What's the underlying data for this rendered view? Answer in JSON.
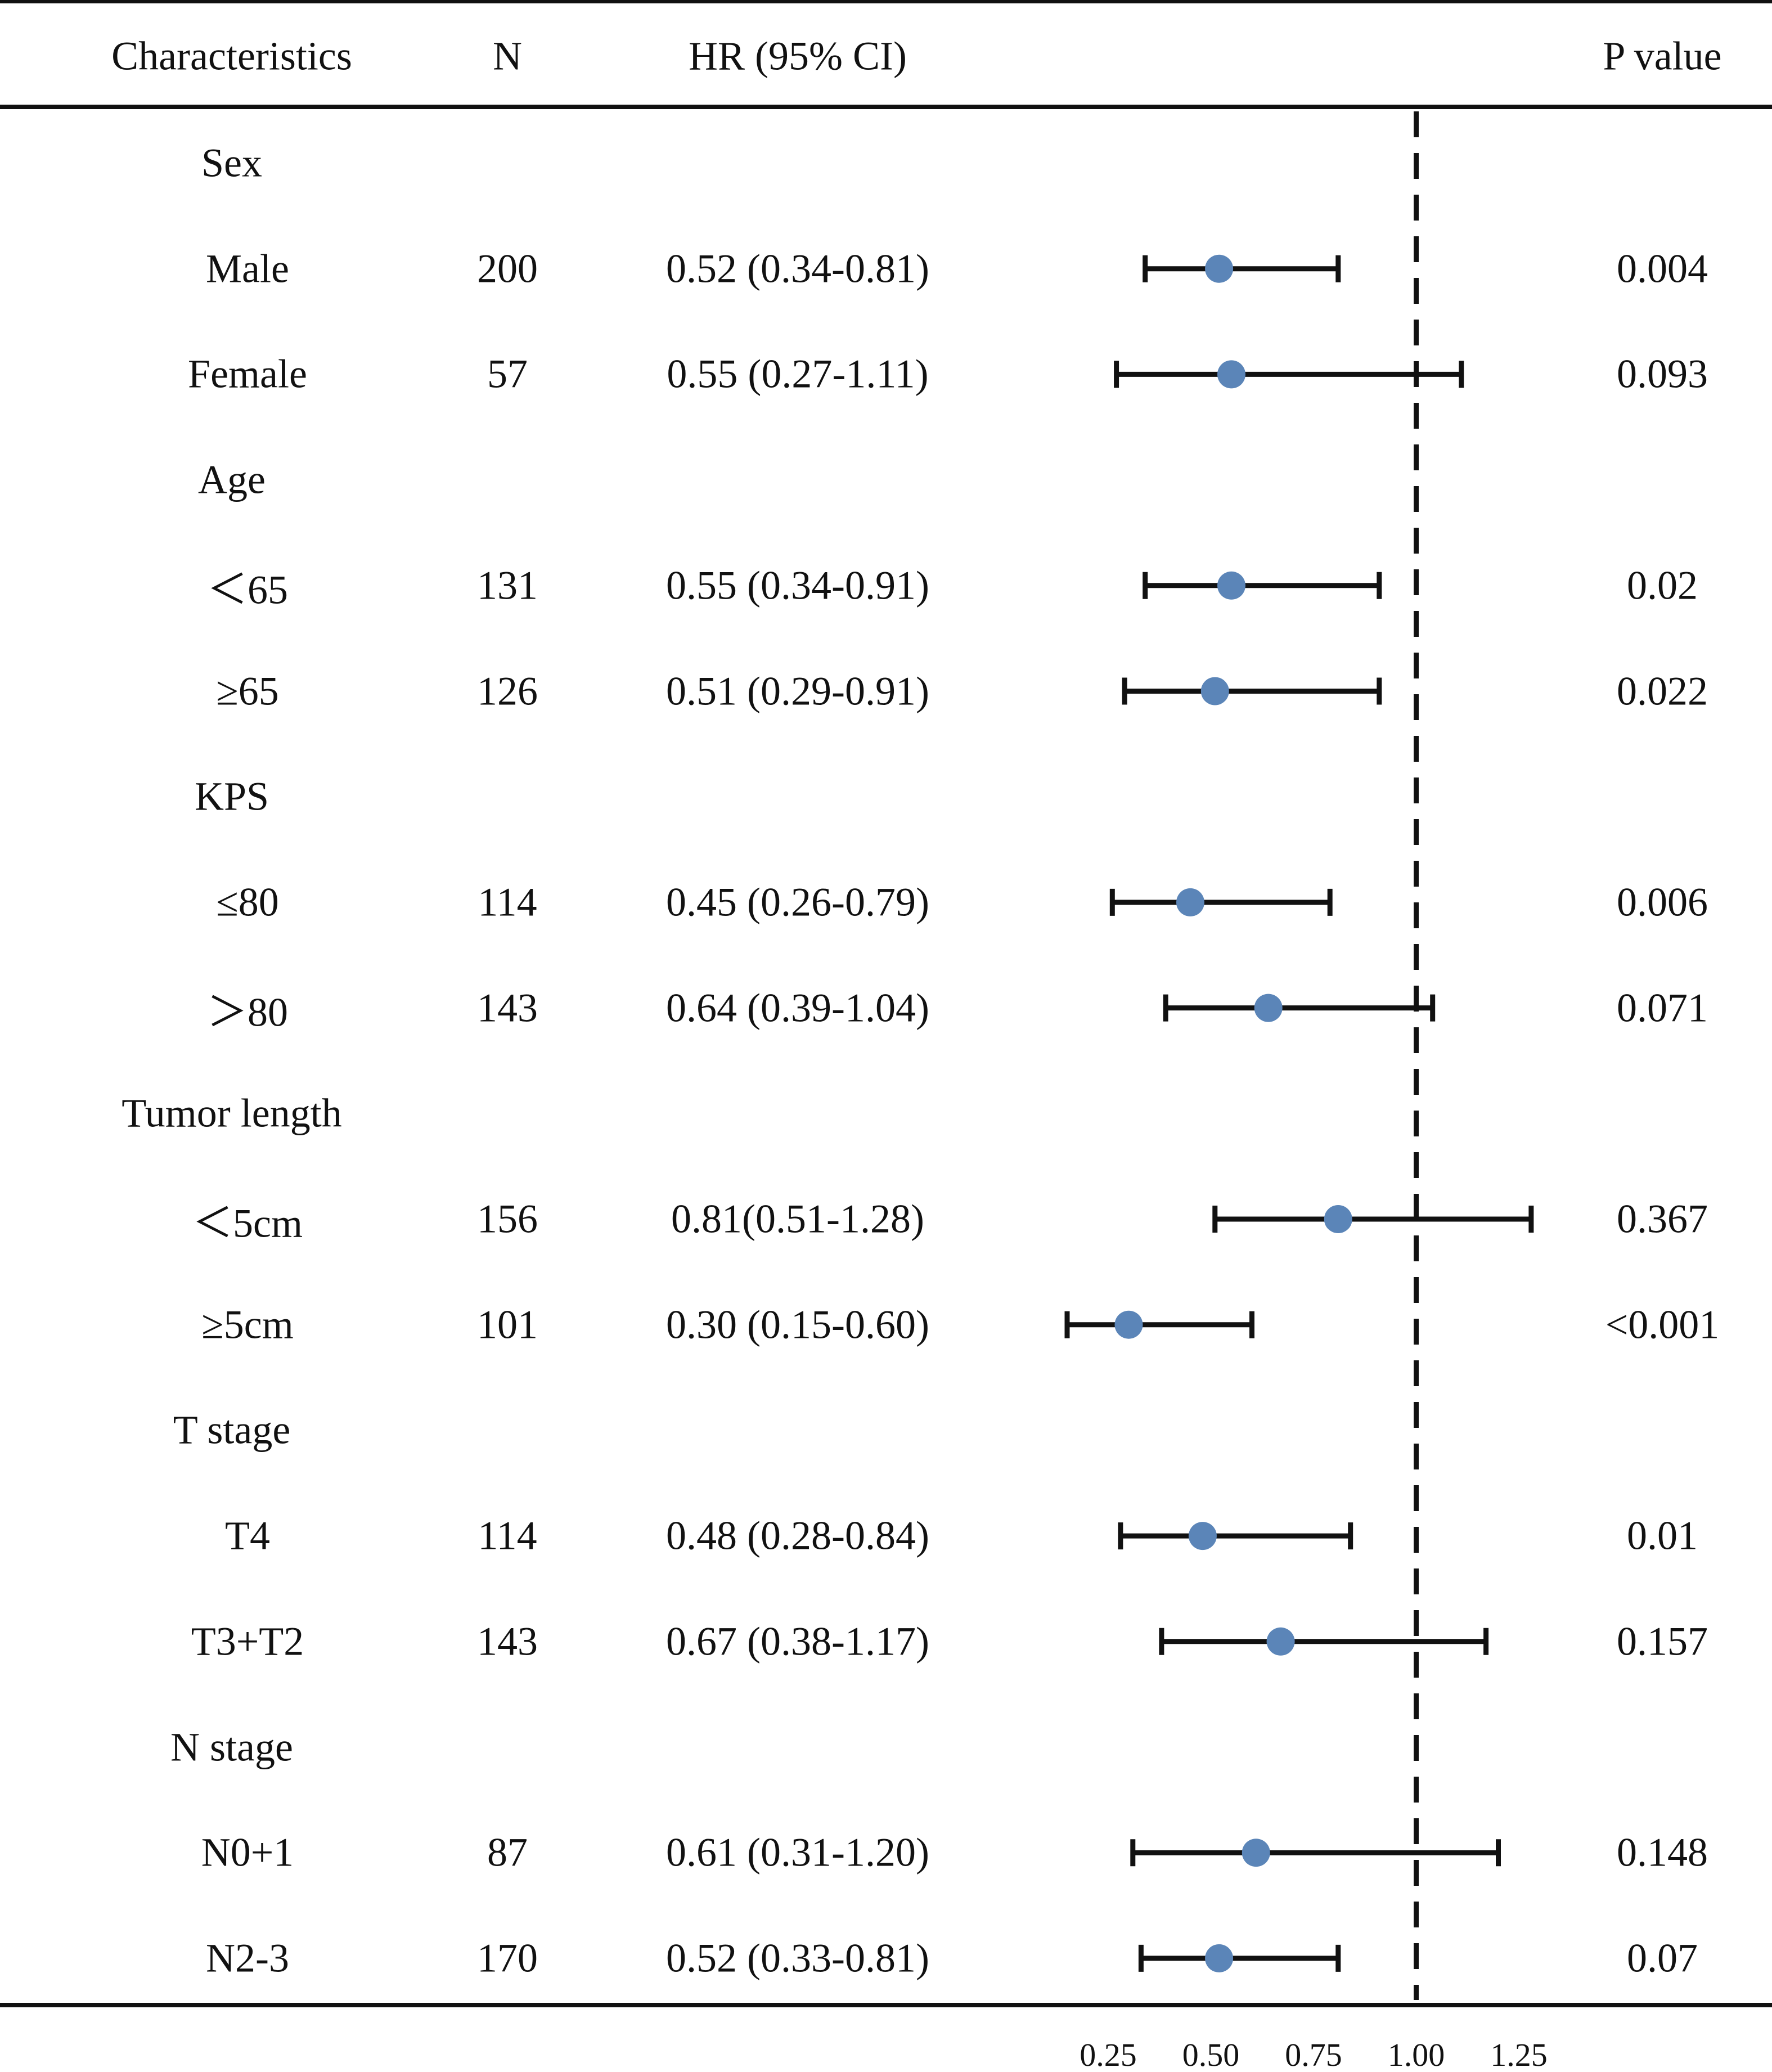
{
  "headers": {
    "characteristics": "Characteristics",
    "n": "N",
    "hr": "HR (95% CI)",
    "p": "P value"
  },
  "rows": [
    {
      "label": "Sex",
      "group": true
    },
    {
      "label": "Male",
      "n": "200",
      "hr_text": "0.52 (0.34-0.81)",
      "p": "0.004",
      "hr": 0.52,
      "lo": 0.34,
      "hi": 0.81
    },
    {
      "label": "Female",
      "n": "57",
      "hr_text": "0.55 (0.27-1.11)",
      "p": "0.093",
      "hr": 0.55,
      "lo": 0.27,
      "hi": 1.11
    },
    {
      "label": "Age",
      "group": true
    },
    {
      "label": "＜65",
      "n": "131",
      "hr_text": "0.55 (0.34-0.91)",
      "p": "0.02",
      "hr": 0.55,
      "lo": 0.34,
      "hi": 0.91
    },
    {
      "label": "≥65",
      "n": "126",
      "hr_text": "0.51 (0.29-0.91)",
      "p": "0.022",
      "hr": 0.51,
      "lo": 0.29,
      "hi": 0.91
    },
    {
      "label": "KPS",
      "group": true
    },
    {
      "label": "≤80",
      "n": "114",
      "hr_text": "0.45 (0.26-0.79)",
      "p": "0.006",
      "hr": 0.45,
      "lo": 0.26,
      "hi": 0.79
    },
    {
      "label": "＞80",
      "n": "143",
      "hr_text": "0.64 (0.39-1.04)",
      "p": "0.071",
      "hr": 0.64,
      "lo": 0.39,
      "hi": 1.04
    },
    {
      "label": "Tumor length",
      "group": true
    },
    {
      "label": "＜5cm",
      "n": "156",
      "hr_text": "0.81(0.51-1.28)",
      "p": "0.367",
      "hr": 0.81,
      "lo": 0.51,
      "hi": 1.28
    },
    {
      "label": "≥5cm",
      "n": "101",
      "hr_text": "0.30 (0.15-0.60)",
      "p": "<0.001",
      "hr": 0.3,
      "lo": 0.15,
      "hi": 0.6
    },
    {
      "label": "T stage",
      "group": true
    },
    {
      "label": "T4",
      "n": "114",
      "hr_text": "0.48 (0.28-0.84)",
      "p": "0.01",
      "hr": 0.48,
      "lo": 0.28,
      "hi": 0.84
    },
    {
      "label": "T3+T2",
      "n": "143",
      "hr_text": "0.67 (0.38-1.17)",
      "p": "0.157",
      "hr": 0.67,
      "lo": 0.38,
      "hi": 1.17
    },
    {
      "label": "N stage",
      "group": true
    },
    {
      "label": "N0+1",
      "n": "87",
      "hr_text": "0.61 (0.31-1.20)",
      "p": "0.148",
      "hr": 0.61,
      "lo": 0.31,
      "hi": 1.2
    },
    {
      "label": "N2-3",
      "n": "170",
      "hr_text": "0.52 (0.33-0.81)",
      "p": "0.07",
      "hr": 0.52,
      "lo": 0.33,
      "hi": 0.81
    }
  ],
  "chart_data": {
    "type": "scatter",
    "title": "",
    "xlabel": "",
    "ylabel": "",
    "x_ticks": [
      "0.25",
      "0.50",
      "0.75",
      "1.00",
      "1.25"
    ],
    "x_tick_values": [
      0.25,
      0.5,
      0.75,
      1.0,
      1.25
    ],
    "xlim": [
      0.25,
      1.25
    ],
    "reference_line": 1.0,
    "categories": [
      "Male",
      "Female",
      "＜65",
      "≥65",
      "≤80",
      "＞80",
      "＜5cm",
      "≥5cm",
      "T4",
      "T3+T2",
      "N0+1",
      "N2-3"
    ],
    "series": [
      {
        "name": "HR",
        "values": [
          0.52,
          0.55,
          0.55,
          0.51,
          0.45,
          0.64,
          0.81,
          0.3,
          0.48,
          0.67,
          0.61,
          0.52
        ]
      },
      {
        "name": "CI lower",
        "values": [
          0.34,
          0.27,
          0.34,
          0.29,
          0.26,
          0.39,
          0.51,
          0.15,
          0.28,
          0.38,
          0.31,
          0.33
        ]
      },
      {
        "name": "CI upper",
        "values": [
          0.81,
          1.11,
          0.91,
          0.91,
          0.79,
          1.04,
          1.28,
          0.6,
          0.84,
          1.17,
          1.2,
          0.81
        ]
      }
    ],
    "marker_color": "#5b85b8",
    "line_color": "#111111"
  }
}
